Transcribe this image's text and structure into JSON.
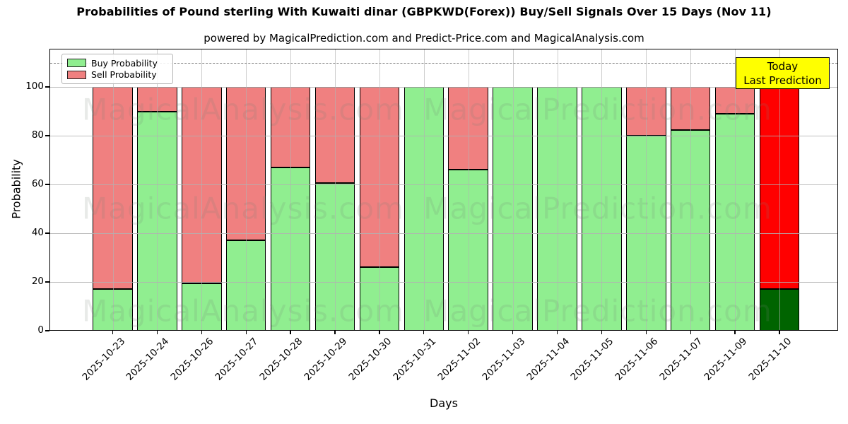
{
  "chart_data": {
    "type": "bar",
    "stacked": true,
    "title": "Probabilities of Pound sterling With Kuwaiti dinar (GBPKWD(Forex)) Buy/Sell Signals Over 15 Days (Nov 11)",
    "subtitle": "powered by MagicalPrediction.com and Predict-Price.com and MagicalAnalysis.com",
    "xlabel": "Days",
    "ylabel": "Probability",
    "ylim": [
      0,
      116
    ],
    "yticks": [
      0,
      20,
      40,
      60,
      80,
      100
    ],
    "grid": true,
    "dashed_line_y": 110,
    "legend_position": "upper left",
    "categories": [
      "2025-10-23",
      "2025-10-24",
      "2025-10-26",
      "2025-10-27",
      "2025-10-28",
      "2025-10-29",
      "2025-10-30",
      "2025-10-31",
      "2025-11-02",
      "2025-11-03",
      "2025-11-04",
      "2025-11-05",
      "2025-11-06",
      "2025-11-07",
      "2025-11-09",
      "2025-11-10"
    ],
    "series": [
      {
        "name": "Buy Probability",
        "color": "#90EE90",
        "values": [
          17,
          90,
          19.5,
          37,
          67,
          60.5,
          26,
          100,
          66,
          100,
          100,
          100,
          80,
          82.5,
          89,
          17
        ]
      },
      {
        "name": "Sell Probability",
        "color": "#F08080",
        "values": [
          83,
          10,
          80.5,
          63,
          33,
          39.5,
          74,
          0,
          34,
          0,
          0,
          0,
          20,
          17.5,
          11,
          83
        ]
      }
    ],
    "today_bar": {
      "category": "2025-11-10",
      "index": 15,
      "buy_color": "#006400",
      "sell_color": "#FF0000"
    },
    "bar_edge_color": "#000000"
  },
  "legend": {
    "items": [
      {
        "label": "Buy Probability",
        "color": "#90EE90"
      },
      {
        "label": "Sell Probability",
        "color": "#F08080"
      }
    ]
  },
  "annotation": {
    "line1": "Today",
    "line2": "Last Prediction",
    "bg_color": "#FFFF00"
  },
  "watermarks": {
    "left": "MagicalAnalysis.com",
    "right": "MagicalPrediction.com"
  }
}
